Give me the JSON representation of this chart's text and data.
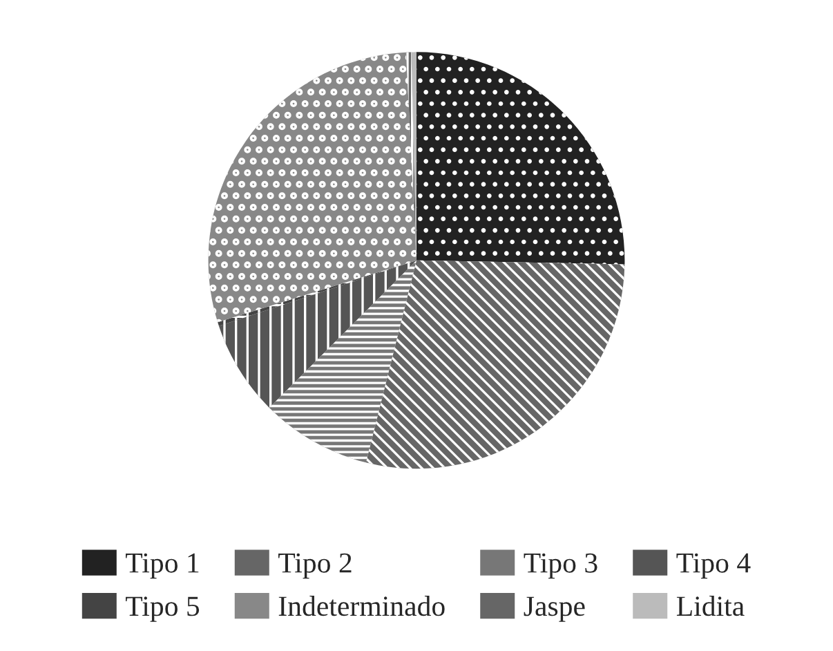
{
  "chart_data": {
    "type": "pie",
    "categories": [
      "Tipo 1",
      "Tipo 2",
      "Tipo 3",
      "Tipo 4",
      "Tipo 5",
      "Indeterminado",
      "Jaspe",
      "Lidita"
    ],
    "values": [
      25.3,
      28.6,
      8.6,
      7.4,
      0.3,
      29.0,
      0.4,
      0.4
    ],
    "colors": [
      "#222222",
      "#666666",
      "#777777",
      "#555555",
      "#444444",
      "#888888",
      "#666666",
      "#bbbbbb"
    ],
    "legend": "bottom"
  }
}
